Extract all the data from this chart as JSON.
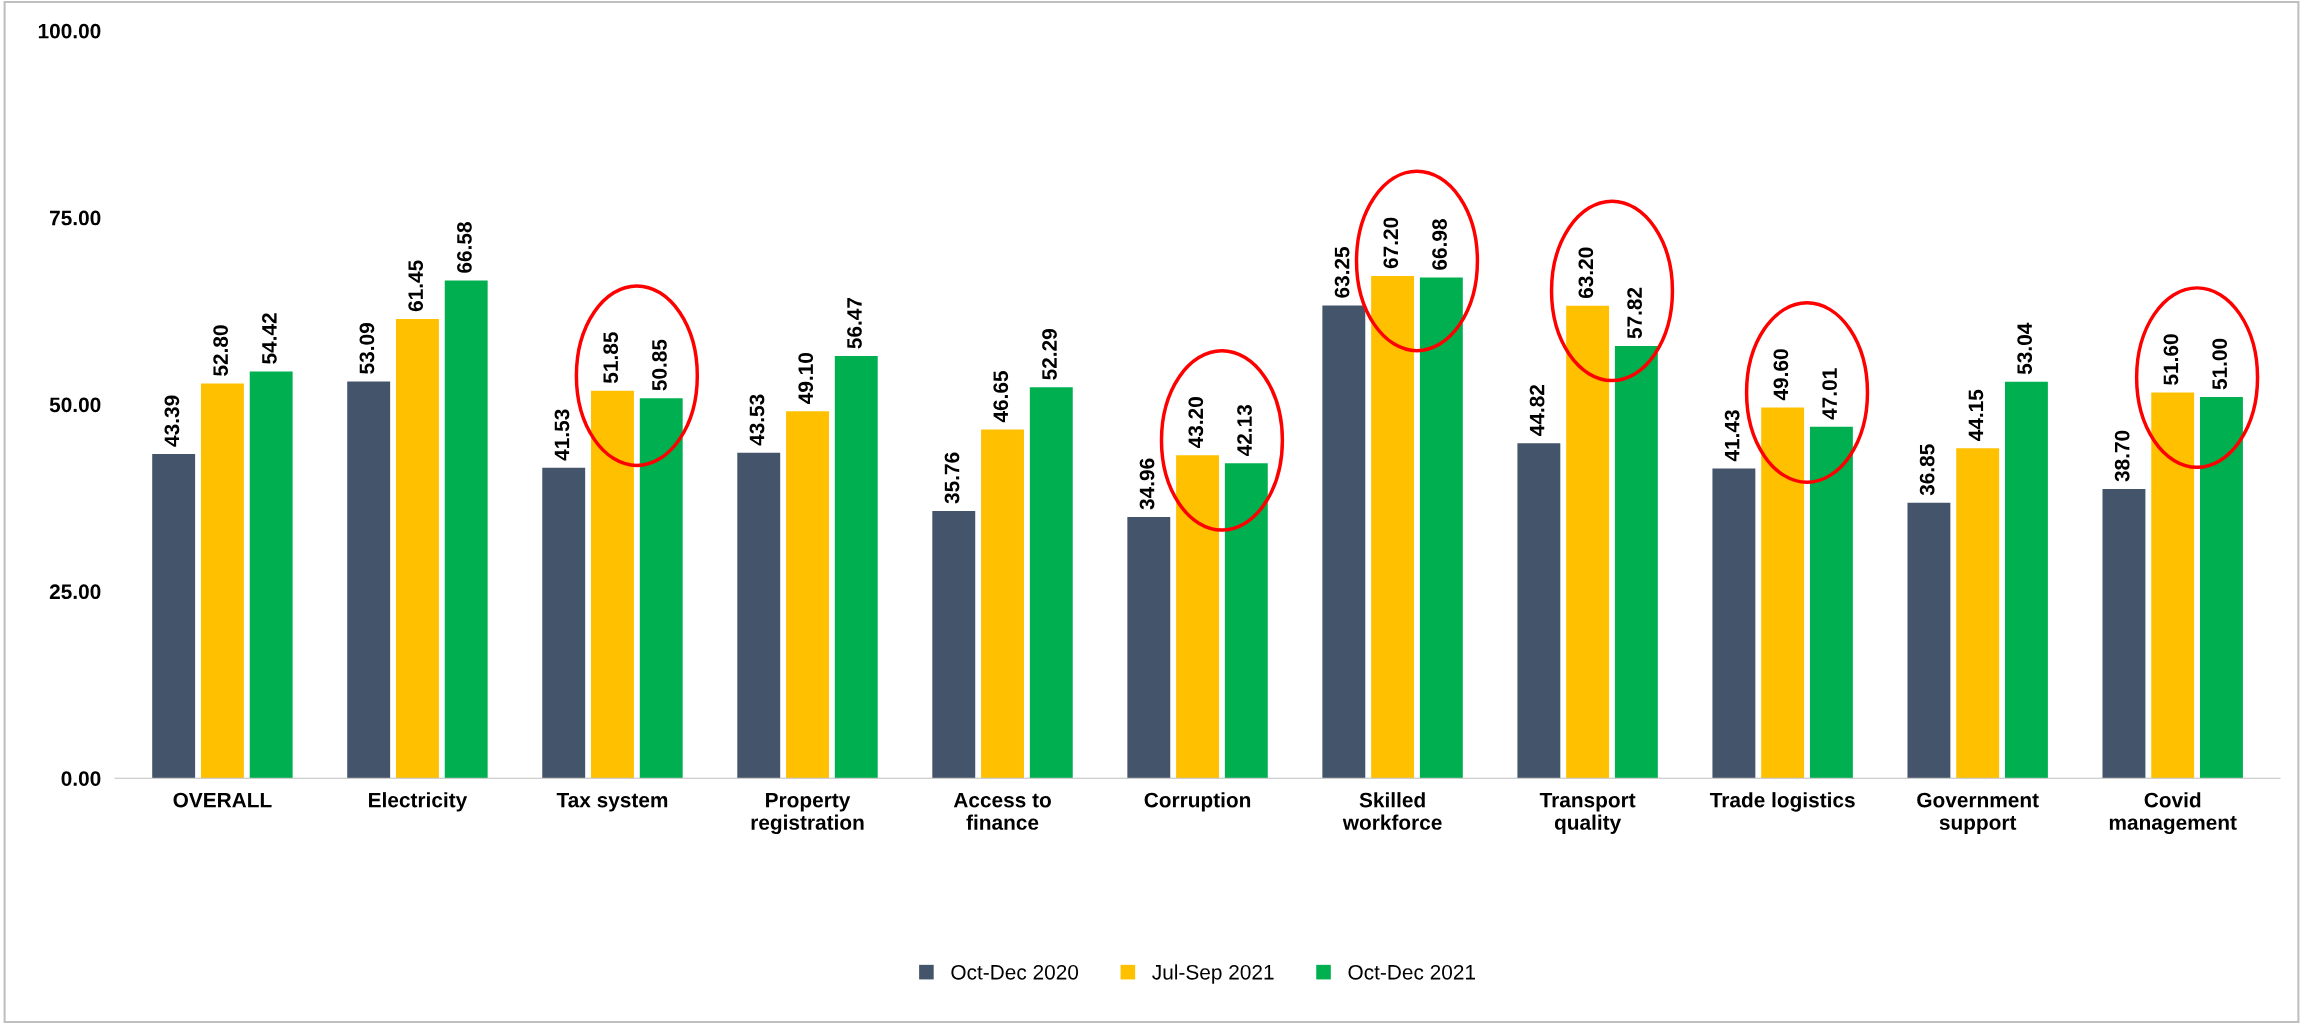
{
  "chart_data": {
    "type": "bar",
    "categories": [
      "OVERALL",
      "Electricity",
      "Tax system",
      "Property\nregistration",
      "Access to\nfinance",
      "Corruption",
      "Skilled\nworkforce",
      "Transport\nquality",
      "Trade logistics",
      "Government\nsupport",
      "Covid\nmanagement"
    ],
    "series": [
      {
        "name": "Oct-Dec 2020",
        "color": "#44546a",
        "values": [
          43.39,
          53.09,
          41.53,
          43.53,
          35.76,
          34.96,
          63.25,
          44.82,
          41.43,
          36.85,
          38.7
        ],
        "value_labels": [
          "43.39",
          "53.09",
          "41.53",
          "43.53",
          "35.76",
          "34.96",
          "63.25",
          "44.82",
          "41.43",
          "36.85",
          "38.70"
        ]
      },
      {
        "name": "Jul-Sep 2021",
        "color": "#ffc000",
        "values": [
          52.8,
          61.45,
          51.85,
          49.1,
          46.65,
          43.2,
          67.2,
          63.2,
          49.6,
          44.15,
          51.6
        ],
        "value_labels": [
          "52.80",
          "61.45",
          "51.85",
          "49.10",
          "46.65",
          "43.20",
          "67.20",
          "63.20",
          "49.60",
          "44.15",
          "51.60"
        ]
      },
      {
        "name": "Oct-Dec 2021",
        "color": "#00b050",
        "values": [
          54.42,
          66.58,
          50.85,
          56.47,
          52.29,
          42.13,
          66.98,
          57.82,
          47.01,
          53.04,
          51.0
        ],
        "value_labels": [
          "54.42",
          "66.58",
          "50.85",
          "56.47",
          "52.29",
          "42.13",
          "66.98",
          "57.82",
          "47.01",
          "53.04",
          "51.00"
        ]
      }
    ],
    "ylim": [
      0,
      100
    ],
    "yticks": [
      {
        "value": 0,
        "label": "0.00"
      },
      {
        "value": 25,
        "label": "25.00"
      },
      {
        "value": 50,
        "label": "50.00"
      },
      {
        "value": 75,
        "label": "75.00"
      },
      {
        "value": 100,
        "label": "100.00"
      }
    ],
    "grid": false,
    "legend": "bottom"
  }
}
